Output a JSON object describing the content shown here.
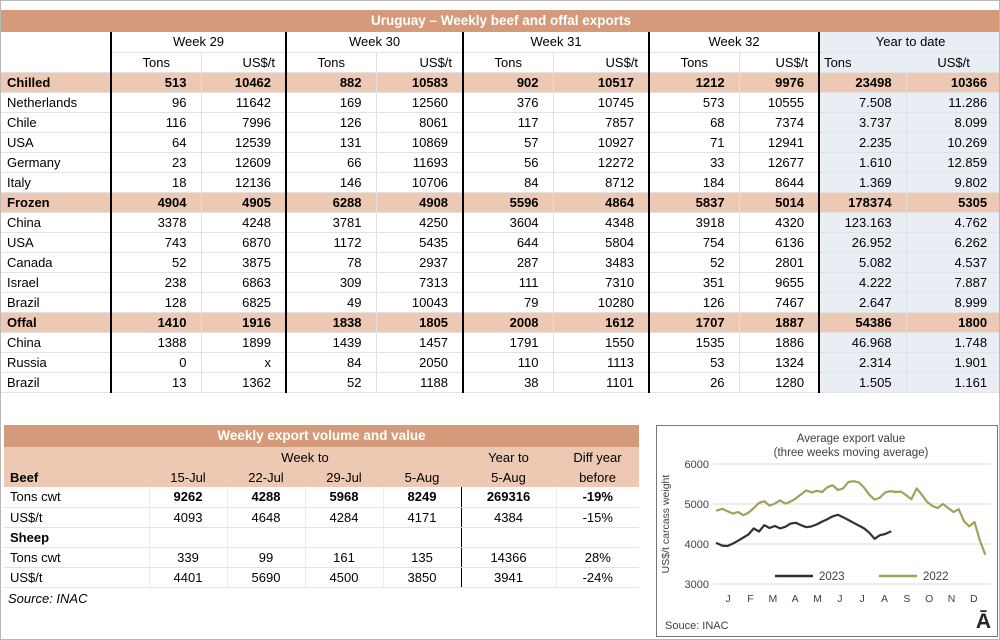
{
  "colors": {
    "title_bar": "#d49a7a",
    "category_row": "#edc9b3",
    "ytd_bg": "#e9edf4",
    "line_2023": "#362f2b",
    "line_2022": "#a3a05c",
    "chart_text": "#404040",
    "chart_grid": "#d9d9d9"
  },
  "main_table": {
    "title": "Uruguay – Weekly beef and offal exports",
    "week_headers": [
      "Week 29",
      "Week 30",
      "Week 31",
      "Week 32"
    ],
    "ytd_header": "Year to date",
    "tons_label": "Tons",
    "usd_label": "US$/t",
    "rows": [
      {
        "label": "Chilled",
        "category": true,
        "values": [
          "513",
          "10462",
          "882",
          "10583",
          "902",
          "10517",
          "1212",
          "9976",
          "23498",
          "10366"
        ]
      },
      {
        "label": "Netherlands",
        "category": false,
        "values": [
          "96",
          "11642",
          "169",
          "12560",
          "376",
          "10745",
          "573",
          "10555",
          "7.508",
          "11.286"
        ]
      },
      {
        "label": "Chile",
        "category": false,
        "values": [
          "116",
          "7996",
          "126",
          "8061",
          "117",
          "7857",
          "68",
          "7374",
          "3.737",
          "8.099"
        ]
      },
      {
        "label": "USA",
        "category": false,
        "values": [
          "64",
          "12539",
          "131",
          "10869",
          "57",
          "10927",
          "71",
          "12941",
          "2.235",
          "10.269"
        ]
      },
      {
        "label": "Germany",
        "category": false,
        "values": [
          "23",
          "12609",
          "66",
          "11693",
          "56",
          "12272",
          "33",
          "12677",
          "1.610",
          "12.859"
        ]
      },
      {
        "label": "Italy",
        "category": false,
        "values": [
          "18",
          "12136",
          "146",
          "10706",
          "84",
          "8712",
          "184",
          "8644",
          "1.369",
          "9.802"
        ]
      },
      {
        "label": "Frozen",
        "category": true,
        "values": [
          "4904",
          "4905",
          "6288",
          "4908",
          "5596",
          "4864",
          "5837",
          "5014",
          "178374",
          "5305"
        ]
      },
      {
        "label": "China",
        "category": false,
        "values": [
          "3378",
          "4248",
          "3781",
          "4250",
          "3604",
          "4348",
          "3918",
          "4320",
          "123.163",
          "4.762"
        ]
      },
      {
        "label": "USA",
        "category": false,
        "values": [
          "743",
          "6870",
          "1172",
          "5435",
          "644",
          "5804",
          "754",
          "6136",
          "26.952",
          "6.262"
        ]
      },
      {
        "label": "Canada",
        "category": false,
        "values": [
          "52",
          "3875",
          "78",
          "2937",
          "287",
          "3483",
          "52",
          "2801",
          "5.082",
          "4.537"
        ]
      },
      {
        "label": "Israel",
        "category": false,
        "values": [
          "238",
          "6863",
          "309",
          "7313",
          "111",
          "7310",
          "351",
          "9655",
          "4.222",
          "7.887"
        ]
      },
      {
        "label": "Brazil",
        "category": false,
        "values": [
          "128",
          "6825",
          "49",
          "10043",
          "79",
          "10280",
          "126",
          "7467",
          "2.647",
          "8.999"
        ]
      },
      {
        "label": "Offal",
        "category": true,
        "values": [
          "1410",
          "1916",
          "1838",
          "1805",
          "2008",
          "1612",
          "1707",
          "1887",
          "54386",
          "1800"
        ]
      },
      {
        "label": "China",
        "category": false,
        "values": [
          "1388",
          "1899",
          "1439",
          "1457",
          "1791",
          "1550",
          "1535",
          "1886",
          "46.968",
          "1.748"
        ]
      },
      {
        "label": "Russia",
        "category": false,
        "values": [
          "0",
          "x",
          "84",
          "2050",
          "110",
          "1113",
          "53",
          "1324",
          "2.314",
          "1.901"
        ]
      },
      {
        "label": "Brazil",
        "category": false,
        "values": [
          "13",
          "1362",
          "52",
          "1188",
          "38",
          "1101",
          "26",
          "1280",
          "1.505",
          "1.161"
        ]
      }
    ]
  },
  "weekly_table": {
    "title": "Weekly export volume and value",
    "group_week_to": "Week to",
    "group_year_to": "Year to",
    "group_diff": "Diff year",
    "headers": [
      "Beef",
      "15-Jul",
      "22-Jul",
      "29-Jul",
      "5-Aug",
      "5-Aug",
      "before"
    ],
    "rows": [
      {
        "label": "Tons cwt",
        "section": false,
        "bold_values": true,
        "values": [
          "9262",
          "4288",
          "5968",
          "8249",
          "269316",
          "-19%"
        ]
      },
      {
        "label": "US$/t",
        "section": false,
        "bold_values": false,
        "values": [
          "4093",
          "4648",
          "4284",
          "4171",
          "4384",
          "-15%"
        ]
      },
      {
        "label": "Sheep",
        "section": true,
        "bold_values": false,
        "values": [
          "",
          "",
          "",
          "",
          "",
          ""
        ]
      },
      {
        "label": "Tons cwt",
        "section": false,
        "bold_values": false,
        "values": [
          "339",
          "99",
          "161",
          "135",
          "14366",
          "28%"
        ]
      },
      {
        "label": "US$/t",
        "section": false,
        "bold_values": false,
        "values": [
          "4401",
          "5690",
          "4500",
          "3850",
          "3941",
          "-24%"
        ]
      }
    ],
    "source": "Source: INAC"
  },
  "chart_data": {
    "type": "line",
    "title": "Average export value",
    "subtitle": "(three weeks moving average)",
    "ylabel": "US$/t carcass weight",
    "yticks": [
      3000,
      4000,
      5000,
      6000
    ],
    "ylim": [
      3000,
      6000
    ],
    "x_month_labels": [
      "J",
      "F",
      "M",
      "A",
      "M",
      "J",
      "J",
      "A",
      "S",
      "O",
      "N",
      "D"
    ],
    "x_unit": "week-of-year",
    "weeks_total": 52,
    "grid": true,
    "legend_position": "inside-bottom",
    "source": "Souce: INAC",
    "corner_glyph": "Ā",
    "series": [
      {
        "name": "2023",
        "color_key": "line_2023",
        "values": [
          4020,
          3960,
          3950,
          4010,
          4080,
          4160,
          4240,
          4390,
          4310,
          4470,
          4400,
          4450,
          4390,
          4430,
          4510,
          4530,
          4470,
          4420,
          4440,
          4490,
          4560,
          4620,
          4690,
          4730,
          4670,
          4600,
          4530,
          4460,
          4390,
          4280,
          4130,
          4220,
          4250,
          4310
        ]
      },
      {
        "name": "2022",
        "color_key": "line_2022",
        "values": [
          4840,
          4880,
          4820,
          4760,
          4800,
          4720,
          4780,
          4900,
          5030,
          5070,
          4960,
          5010,
          5090,
          5010,
          5060,
          5140,
          5240,
          5340,
          5290,
          5330,
          5300,
          5420,
          5470,
          5350,
          5390,
          5550,
          5570,
          5540,
          5410,
          5230,
          5110,
          5160,
          5290,
          5320,
          5300,
          5310,
          5220,
          5120,
          5390,
          5230,
          5050,
          4950,
          4900,
          5000,
          4900,
          4800,
          4870,
          4570,
          4440,
          4550,
          4100,
          3750
        ]
      }
    ]
  }
}
